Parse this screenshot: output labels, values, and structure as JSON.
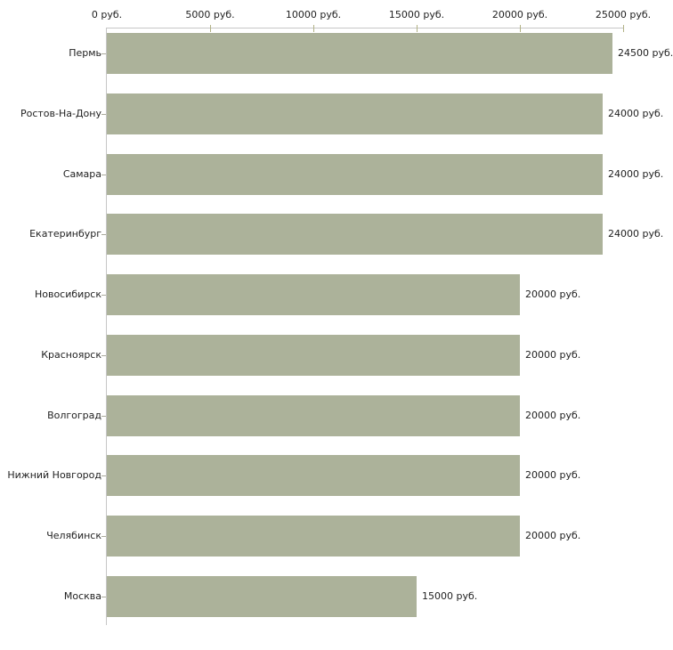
{
  "chart_data": {
    "type": "bar",
    "orientation": "horizontal",
    "title": "",
    "categories": [
      "Пермь",
      "Ростов-На-Дону",
      "Самара",
      "Екатеринбург",
      "Новосибирск",
      "Красноярск",
      "Волгоград",
      "Нижний Новгород",
      "Челябинск",
      "Москва"
    ],
    "values": [
      24500,
      24000,
      24000,
      24000,
      20000,
      20000,
      20000,
      20000,
      20000,
      15000
    ],
    "value_labels": [
      "24500 руб.",
      "24000 руб.",
      "24000 руб.",
      "24000 руб.",
      "20000 руб.",
      "20000 руб.",
      "20000 руб.",
      "20000 руб.",
      "20000 руб.",
      "15000 руб."
    ],
    "unit": "руб.",
    "x_axis": {
      "position": "top",
      "range": [
        0,
        25000
      ],
      "ticks": [
        0,
        5000,
        10000,
        15000,
        20000,
        25000
      ],
      "tick_labels": [
        "0 руб.",
        "5000 руб.",
        "10000 руб.",
        "15000 руб.",
        "20000 руб.",
        "25000 руб."
      ]
    },
    "grid": false,
    "legend": null,
    "colors": {
      "bar": "#acb29a",
      "axis_line": "#c6c6c6",
      "tick": "#b2b285",
      "text": "#222222",
      "background": "#ffffff"
    }
  }
}
